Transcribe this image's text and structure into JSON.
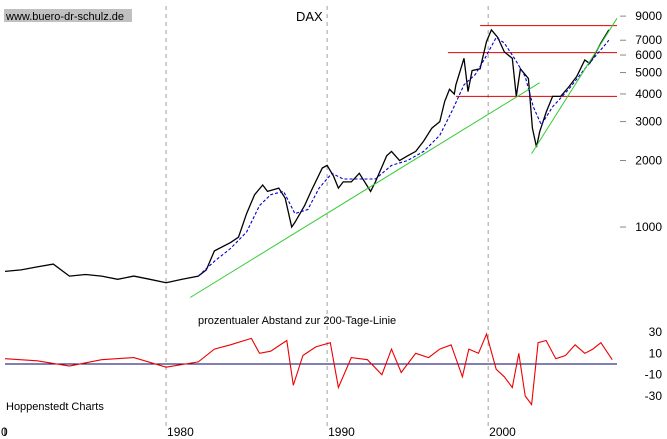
{
  "watermark": "www.buero-dr-schulz.de",
  "footer": "Hoppenstedt Charts",
  "colors": {
    "price": "#000000",
    "moving_average": "#0000cc",
    "trendline": "#33cc33",
    "resistance": "#e00000",
    "oscillator": "#ee0000",
    "zero_line": "#000066",
    "grid": "#a0a0a0",
    "watermark_bg": "#c0c0c0"
  },
  "chart_data": [
    {
      "type": "line",
      "title": "DAX",
      "yscale": "log",
      "ylim": [
        400,
        10000
      ],
      "xlim": [
        1970,
        2008
      ],
      "x_ticks": [
        "0",
        "1980",
        "1990",
        "2000"
      ],
      "y_ticks": [
        1000,
        2000,
        3000,
        4000,
        5000,
        6000,
        7000,
        9000
      ],
      "grid_years": [
        1980,
        1990,
        2000
      ],
      "series": [
        {
          "role": "price",
          "x": [
            1970,
            1971,
            1972,
            1973,
            1974,
            1975,
            1976,
            1977,
            1978,
            1979,
            1980,
            1981,
            1982,
            1982.5,
            1983,
            1984,
            1984.5,
            1985,
            1985.5,
            1986,
            1986.3,
            1987,
            1987.4,
            1987.8,
            1988,
            1988.6,
            1989,
            1989.7,
            1990,
            1990.4,
            1990.7,
            1991,
            1991.5,
            1992,
            1992.7,
            1993,
            1993.7,
            1994,
            1994.5,
            1995,
            1995.5,
            1996,
            1996.5,
            1997,
            1997.3,
            1997.6,
            1997.9,
            1998,
            1998.5,
            1998.75,
            1999,
            1999.5,
            1999.9,
            2000.2,
            2000.6,
            2001,
            2001.5,
            2001.75,
            2002,
            2002.5,
            2002.75,
            2003,
            2003.2,
            2003.6,
            2004,
            2004.5,
            2005,
            2005.5,
            2006,
            2006.3,
            2006.6,
            2007,
            2007.5
          ],
          "values": [
            630,
            640,
            660,
            680,
            600,
            610,
            600,
            580,
            600,
            580,
            560,
            580,
            600,
            640,
            780,
            850,
            900,
            1150,
            1400,
            1550,
            1450,
            1500,
            1350,
            1000,
            1050,
            1250,
            1450,
            1850,
            1900,
            1700,
            1500,
            1600,
            1600,
            1750,
            1450,
            1600,
            2100,
            2200,
            2000,
            2100,
            2200,
            2450,
            2800,
            3000,
            3700,
            4200,
            4000,
            4400,
            5800,
            4100,
            5100,
            5200,
            6900,
            7800,
            7200,
            6200,
            5800,
            3900,
            5200,
            4700,
            2800,
            2300,
            2700,
            3300,
            3900,
            3900,
            4300,
            4800,
            5700,
            5500,
            6000,
            6800,
            7800
          ]
        },
        {
          "role": "moving-average",
          "x": [
            1982,
            1983,
            1984,
            1985,
            1985.8,
            1986.5,
            1987.3,
            1988,
            1988.8,
            1989.5,
            1990.3,
            1991,
            1992,
            1993,
            1994,
            1995,
            1996,
            1997,
            1997.8,
            1998.5,
            1999.2,
            1999.8,
            2000.5,
            2001,
            2001.7,
            2002.3,
            2002.8,
            2003.3,
            2004,
            2005,
            2006,
            2007.5
          ],
          "values": [
            600,
            700,
            800,
            950,
            1250,
            1400,
            1450,
            1150,
            1200,
            1500,
            1750,
            1650,
            1650,
            1650,
            1900,
            2000,
            2200,
            2600,
            3400,
            4400,
            4900,
            5800,
            7200,
            6800,
            5700,
            4800,
            3500,
            2900,
            3500,
            4200,
            5200,
            7000
          ]
        },
        {
          "role": "trendline",
          "x": [
            1981.5,
            2003.2
          ],
          "values": [
            480,
            4500
          ]
        },
        {
          "role": "trendline",
          "x": [
            2002.7,
            2008.0
          ],
          "values": [
            2150,
            8800
          ]
        }
      ],
      "resistance_lines": [
        {
          "value": 8150,
          "from": 1999.5,
          "to": 2008
        },
        {
          "value": 6150,
          "from": 1997.5,
          "to": 2008
        },
        {
          "value": 3900,
          "from": 1998,
          "to": 2008
        }
      ]
    },
    {
      "type": "line",
      "title": "prozentualer Abstand zur 200-Tage-Linie",
      "ylim": [
        -45,
        45
      ],
      "y_ticks": [
        "30",
        "10",
        "-10",
        "-30"
      ],
      "y_tick_values": [
        30,
        10,
        -10,
        -30
      ],
      "series": [
        {
          "role": "oscillator",
          "x": [
            1970,
            1972,
            1974,
            1976,
            1978,
            1980,
            1982,
            1983,
            1984,
            1985.3,
            1985.8,
            1986.5,
            1987.5,
            1987.9,
            1988.5,
            1989.3,
            1990.2,
            1990.7,
            1991.5,
            1992.5,
            1993.4,
            1994,
            1994.6,
            1995.5,
            1996.3,
            1997,
            1997.7,
            1998.4,
            1998.8,
            1999.4,
            1999.9,
            2000.5,
            2001,
            2001.5,
            2001.9,
            2002.3,
            2002.7,
            2003.1,
            2003.6,
            2004.2,
            2004.8,
            2005.4,
            2006,
            2006.5,
            2007,
            2007.7
          ],
          "values": [
            5,
            3,
            -2,
            4,
            6,
            -3,
            2,
            14,
            18,
            24,
            10,
            12,
            22,
            -20,
            8,
            16,
            20,
            -22,
            6,
            4,
            -10,
            14,
            -8,
            10,
            6,
            14,
            18,
            -12,
            14,
            10,
            28,
            -5,
            -12,
            -22,
            10,
            -30,
            -38,
            20,
            22,
            5,
            8,
            18,
            10,
            14,
            20,
            4
          ]
        }
      ]
    }
  ]
}
